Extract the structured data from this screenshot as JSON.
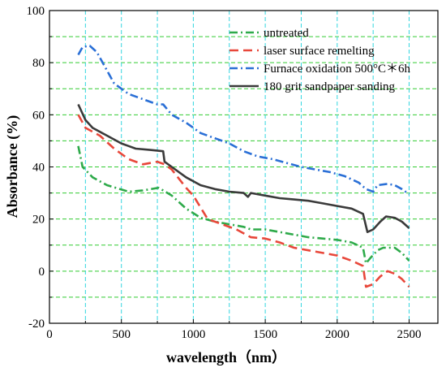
{
  "chart_data": {
    "type": "line",
    "xlabel": "wavelength（nm）",
    "ylabel": "Absorbance (%)",
    "xlim": [
      0,
      2700
    ],
    "ylim": [
      -20,
      100
    ],
    "x_ticks": [
      0,
      500,
      1000,
      1500,
      2000,
      2500
    ],
    "y_ticks": [
      -20,
      0,
      20,
      40,
      60,
      80,
      100
    ],
    "grid": true,
    "legend_position": "top-right",
    "series": [
      {
        "name": "untreated",
        "color": "#2eaa4a",
        "dash": "dash-dot",
        "points": [
          [
            200,
            48
          ],
          [
            230,
            40
          ],
          [
            300,
            36
          ],
          [
            400,
            33
          ],
          [
            550,
            30.5
          ],
          [
            650,
            31
          ],
          [
            760,
            32
          ],
          [
            850,
            29
          ],
          [
            950,
            24
          ],
          [
            1050,
            20.5
          ],
          [
            1150,
            19
          ],
          [
            1250,
            18
          ],
          [
            1350,
            17
          ],
          [
            1400,
            16
          ],
          [
            1500,
            16
          ],
          [
            1600,
            15
          ],
          [
            1700,
            14
          ],
          [
            1800,
            13
          ],
          [
            1900,
            12.5
          ],
          [
            2000,
            12
          ],
          [
            2100,
            11
          ],
          [
            2180,
            9
          ],
          [
            2200,
            3
          ],
          [
            2230,
            5
          ],
          [
            2280,
            8
          ],
          [
            2320,
            9
          ],
          [
            2400,
            9
          ],
          [
            2450,
            7
          ],
          [
            2500,
            4
          ]
        ]
      },
      {
        "name": "laser surface remelting",
        "color": "#e8473a",
        "dash": "dash",
        "points": [
          [
            200,
            60
          ],
          [
            250,
            55
          ],
          [
            350,
            52
          ],
          [
            450,
            47
          ],
          [
            550,
            43
          ],
          [
            650,
            41
          ],
          [
            750,
            42
          ],
          [
            800,
            41
          ],
          [
            850,
            39
          ],
          [
            950,
            32
          ],
          [
            1000,
            29
          ],
          [
            1100,
            20
          ],
          [
            1200,
            18
          ],
          [
            1300,
            16
          ],
          [
            1400,
            13
          ],
          [
            1500,
            12.5
          ],
          [
            1600,
            11
          ],
          [
            1700,
            9
          ],
          [
            1800,
            8
          ],
          [
            1900,
            7
          ],
          [
            2000,
            6
          ],
          [
            2100,
            4
          ],
          [
            2180,
            2
          ],
          [
            2200,
            -6
          ],
          [
            2250,
            -5
          ],
          [
            2300,
            -2
          ],
          [
            2350,
            0
          ],
          [
            2400,
            -1
          ],
          [
            2450,
            -3
          ],
          [
            2500,
            -6
          ]
        ]
      },
      {
        "name": "Furnace oxidation 500°C＊6h",
        "color": "#2a6fd6",
        "dash": "dash-dot",
        "points": [
          [
            200,
            83
          ],
          [
            230,
            86
          ],
          [
            280,
            86.5
          ],
          [
            330,
            84
          ],
          [
            380,
            79
          ],
          [
            450,
            72
          ],
          [
            550,
            68
          ],
          [
            650,
            66
          ],
          [
            750,
            64
          ],
          [
            790,
            64
          ],
          [
            850,
            60
          ],
          [
            950,
            57
          ],
          [
            1050,
            53
          ],
          [
            1150,
            51
          ],
          [
            1250,
            49
          ],
          [
            1350,
            46
          ],
          [
            1450,
            44
          ],
          [
            1550,
            43
          ],
          [
            1650,
            41.5
          ],
          [
            1750,
            40
          ],
          [
            1850,
            39
          ],
          [
            1950,
            38
          ],
          [
            2050,
            36.5
          ],
          [
            2150,
            34
          ],
          [
            2200,
            31.5
          ],
          [
            2250,
            30.5
          ],
          [
            2280,
            33
          ],
          [
            2350,
            33.5
          ],
          [
            2400,
            33
          ],
          [
            2450,
            31.5
          ],
          [
            2500,
            29.5
          ]
        ]
      },
      {
        "name": "180 grit sandpaper sanding",
        "color": "#3a3a3a",
        "dash": "solid",
        "points": [
          [
            200,
            64
          ],
          [
            250,
            58
          ],
          [
            300,
            55
          ],
          [
            400,
            52
          ],
          [
            500,
            49
          ],
          [
            550,
            48
          ],
          [
            600,
            47
          ],
          [
            700,
            46.5
          ],
          [
            790,
            46
          ],
          [
            800,
            42
          ],
          [
            850,
            40
          ],
          [
            950,
            36
          ],
          [
            1050,
            33
          ],
          [
            1150,
            31.5
          ],
          [
            1250,
            30.5
          ],
          [
            1350,
            30
          ],
          [
            1380,
            28.5
          ],
          [
            1400,
            30
          ],
          [
            1500,
            29
          ],
          [
            1600,
            28
          ],
          [
            1700,
            27.5
          ],
          [
            1800,
            27
          ],
          [
            1900,
            26
          ],
          [
            2000,
            25
          ],
          [
            2100,
            24
          ],
          [
            2180,
            22
          ],
          [
            2210,
            15
          ],
          [
            2250,
            16
          ],
          [
            2300,
            19
          ],
          [
            2340,
            21
          ],
          [
            2400,
            20.5
          ],
          [
            2450,
            19
          ],
          [
            2500,
            16.5
          ]
        ]
      }
    ]
  }
}
